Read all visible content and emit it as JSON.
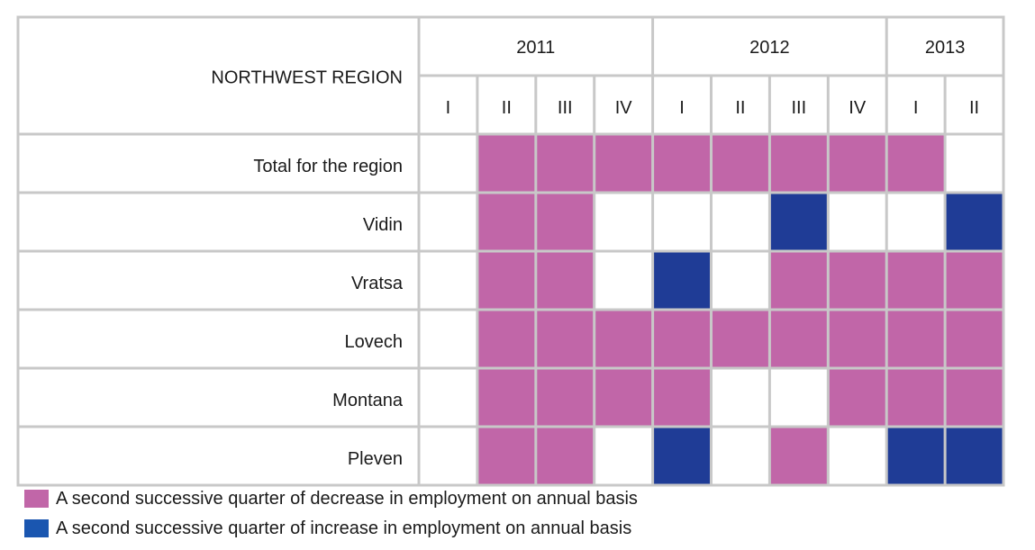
{
  "chart_data": {
    "type": "heatmap",
    "title": "NORTHWEST REGION",
    "years": [
      {
        "label": "2011",
        "span": 4
      },
      {
        "label": "2012",
        "span": 4
      },
      {
        "label": "2013",
        "span": 2
      }
    ],
    "quarters": [
      "I",
      "II",
      "III",
      "IV",
      "I",
      "II",
      "III",
      "IV",
      "I",
      "II"
    ],
    "rows": [
      {
        "label": "Total for the region",
        "values": [
          "none",
          "decrease",
          "decrease",
          "decrease",
          "decrease",
          "decrease",
          "decrease",
          "decrease",
          "decrease",
          "none"
        ]
      },
      {
        "label": "Vidin",
        "values": [
          "none",
          "decrease",
          "decrease",
          "none",
          "none",
          "none",
          "increase",
          "none",
          "none",
          "increase"
        ]
      },
      {
        "label": "Vratsa",
        "values": [
          "none",
          "decrease",
          "decrease",
          "none",
          "increase",
          "none",
          "decrease",
          "decrease",
          "decrease",
          "decrease"
        ]
      },
      {
        "label": "Lovech",
        "values": [
          "none",
          "decrease",
          "decrease",
          "decrease",
          "decrease",
          "decrease",
          "decrease",
          "decrease",
          "decrease",
          "decrease"
        ]
      },
      {
        "label": "Montana",
        "values": [
          "none",
          "decrease",
          "decrease",
          "decrease",
          "decrease",
          "none",
          "none",
          "decrease",
          "decrease",
          "decrease"
        ]
      },
      {
        "label": "Pleven",
        "values": [
          "none",
          "decrease",
          "decrease",
          "none",
          "increase",
          "none",
          "decrease",
          "none",
          "increase",
          "increase"
        ]
      }
    ],
    "legend": [
      {
        "key": "decrease",
        "label": "A second successive quarter of decrease in employment on annual basis",
        "color": "#c166a8"
      },
      {
        "key": "increase",
        "label": "A second successive quarter of increase in employment on annual basis",
        "color": "#1f3c96"
      }
    ],
    "colors": {
      "none": "#ffffff",
      "grid_line": "#c8c8c8",
      "legend_increase_swatch": "#1a56b0"
    }
  }
}
